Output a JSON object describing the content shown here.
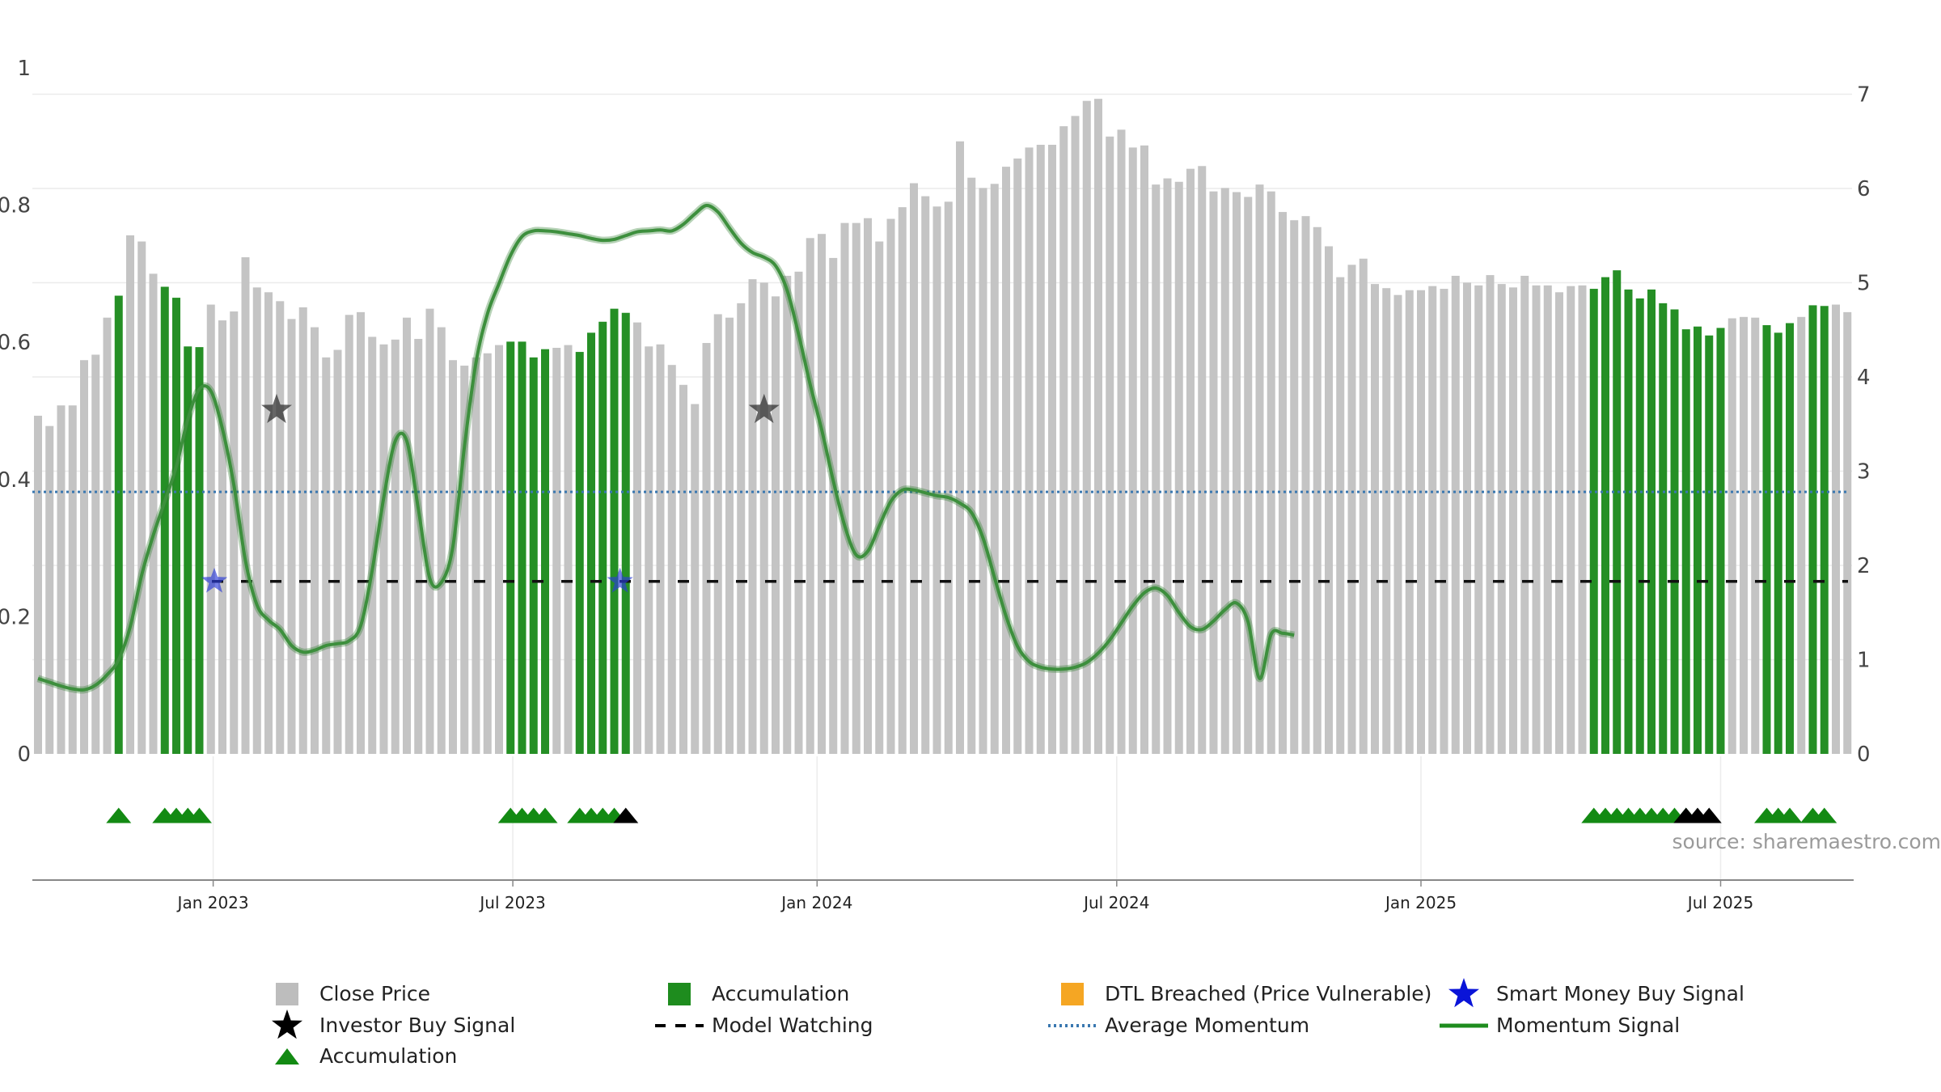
{
  "chart_data": {
    "type": "bar",
    "title": "",
    "source": "source: sharemaestro.com",
    "left_axis": {
      "ticks": [
        0,
        0.2,
        0.4,
        0.6,
        0.8,
        1
      ],
      "tick_labels": [
        "0",
        "0.2",
        "0.4",
        "0.6",
        "0.8",
        "1"
      ],
      "ylim": [
        0,
        1
      ]
    },
    "right_axis": {
      "ticks": [
        0,
        1,
        2,
        3,
        4,
        5,
        6,
        7
      ],
      "tick_labels": [
        "0",
        "1",
        "2",
        "3",
        "4",
        "5",
        "6",
        "7"
      ],
      "ylim": [
        0,
        7
      ]
    },
    "x_ticks": [
      {
        "label": "Jan 2023",
        "index": 15.2
      },
      {
        "label": "Jul 2023",
        "index": 41.2
      },
      {
        "label": "Jan 2024",
        "index": 67.6
      },
      {
        "label": "Jul 2024",
        "index": 93.6
      },
      {
        "label": "Jan 2025",
        "index": 120.0
      },
      {
        "label": "Jul 2025",
        "index": 146.0
      }
    ],
    "close_price": [
      0.493,
      0.478,
      0.508,
      0.508,
      0.574,
      0.582,
      0.636,
      0.668,
      0.756,
      0.747,
      0.7,
      0.681,
      0.665,
      0.594,
      0.593,
      0.655,
      0.632,
      0.645,
      0.724,
      0.68,
      0.673,
      0.66,
      0.634,
      0.651,
      0.622,
      0.578,
      0.589,
      0.64,
      0.644,
      0.608,
      0.597,
      0.604,
      0.636,
      0.605,
      0.649,
      0.622,
      0.574,
      0.566,
      0.578,
      0.584,
      0.596,
      0.601,
      0.601,
      0.578,
      0.59,
      0.592,
      0.596,
      0.586,
      0.614,
      0.63,
      0.649,
      0.643,
      0.629,
      0.594,
      0.597,
      0.567,
      0.538,
      0.51,
      0.599,
      0.641,
      0.636,
      0.657,
      0.692,
      0.687,
      0.667,
      0.697,
      0.703,
      0.752,
      0.758,
      0.723,
      0.774,
      0.774,
      0.781,
      0.747,
      0.78,
      0.797,
      0.832,
      0.813,
      0.798,
      0.805,
      0.893,
      0.84,
      0.825,
      0.831,
      0.856,
      0.868,
      0.884,
      0.888,
      0.888,
      0.915,
      0.93,
      0.952,
      0.955,
      0.9,
      0.91,
      0.884,
      0.887,
      0.83,
      0.839,
      0.834,
      0.853,
      0.857,
      0.82,
      0.825,
      0.819,
      0.812,
      0.83,
      0.82,
      0.79,
      0.778,
      0.784,
      0.768,
      0.74,
      0.695,
      0.713,
      0.722,
      0.685,
      0.679,
      0.669,
      0.676,
      0.676,
      0.682,
      0.678,
      0.697,
      0.687,
      0.683,
      0.698,
      0.685,
      0.68,
      0.697,
      0.683,
      0.683,
      0.673,
      0.682,
      0.683,
      0.678,
      0.695,
      0.705,
      0.677,
      0.664,
      0.677,
      0.657,
      0.648,
      0.619,
      0.623,
      0.61,
      0.621,
      0.635,
      0.637,
      0.636,
      0.625,
      0.614,
      0.628,
      0.637,
      0.654,
      0.653,
      0.655,
      0.644
    ],
    "accumulation_bar_indices": [
      7,
      11,
      12,
      13,
      14,
      41,
      42,
      43,
      44,
      47,
      48,
      49,
      50,
      51,
      135,
      136,
      137,
      138,
      139,
      140,
      141,
      142,
      143,
      144,
      145,
      146,
      150,
      151,
      152,
      154,
      155
    ],
    "momentum_signal": [
      0.8,
      0.76,
      0.72,
      0.69,
      0.68,
      0.73,
      0.84,
      1.0,
      1.35,
      1.9,
      2.32,
      2.68,
      3.05,
      3.55,
      3.87,
      3.85,
      3.45,
      2.85,
      2.05,
      1.58,
      1.42,
      1.32,
      1.15,
      1.08,
      1.1,
      1.15,
      1.17,
      1.2,
      1.36,
      1.95,
      2.72,
      3.32,
      3.32,
      2.6,
      1.86,
      1.82,
      2.2,
      3.26,
      4.15,
      4.67,
      4.99,
      5.29,
      5.49,
      5.55,
      5.55,
      5.54,
      5.52,
      5.5,
      5.47,
      5.45,
      5.46,
      5.5,
      5.54,
      5.55,
      5.56,
      5.55,
      5.62,
      5.73,
      5.82,
      5.75,
      5.58,
      5.42,
      5.32,
      5.27,
      5.18,
      4.92,
      4.45,
      3.92,
      3.44,
      2.9,
      2.42,
      2.11,
      2.15,
      2.42,
      2.68,
      2.8,
      2.8,
      2.77,
      2.74,
      2.72,
      2.66,
      2.56,
      2.29,
      1.87,
      1.46,
      1.14,
      0.98,
      0.92,
      0.9,
      0.9,
      0.92,
      0.97,
      1.07,
      1.21,
      1.39,
      1.57,
      1.71,
      1.76,
      1.68,
      1.5,
      1.35,
      1.32,
      1.41,
      1.53,
      1.6,
      1.4,
      0.8,
      1.27,
      1.28,
      1.26
    ],
    "average_momentum": 2.78,
    "model_watching_level": 1.83,
    "investor_buy_signals": [
      {
        "index": 20.7,
        "value": 3.65
      },
      {
        "index": 63.0,
        "value": 3.65
      }
    ],
    "smart_money_buy_signals": [
      {
        "index": 15.3,
        "value": 1.83
      },
      {
        "index": 50.5,
        "value": 1.83
      }
    ],
    "accumulation_markers": [
      7,
      11,
      12,
      13,
      14,
      41,
      42,
      43,
      44,
      47,
      48,
      49,
      50,
      135,
      136,
      137,
      138,
      139,
      140,
      141,
      142,
      143,
      150,
      151,
      152,
      154,
      155
    ],
    "black_markers": [
      51,
      143,
      144,
      145
    ],
    "legend": [
      {
        "label": "Close Price",
        "symbol": "square",
        "color": "#bdbdbd"
      },
      {
        "label": "Accumulation",
        "symbol": "square",
        "color": "#1e8c1e"
      },
      {
        "label": "DTL Breached (Price Vulnerable)",
        "symbol": "square",
        "color": "#f5a623"
      },
      {
        "label": "Smart Money Buy Signal",
        "symbol": "star",
        "color": "#0a14d8"
      },
      {
        "label": "Investor Buy Signal",
        "symbol": "star",
        "color": "#000000"
      },
      {
        "label": "Model Watching",
        "symbol": "dash",
        "color": "#000000"
      },
      {
        "label": "Average Momentum",
        "symbol": "dotted",
        "color": "#3a78b0"
      },
      {
        "label": "Momentum Signal",
        "symbol": "line",
        "color": "#1e8c1e"
      },
      {
        "label": "Accumulation",
        "symbol": "triangle",
        "color": "#138a13"
      }
    ],
    "colors": {
      "close": "#c4c4c4",
      "accumulation": "#258f25",
      "momentum": "#3d8f3d",
      "average": "#3a78b0",
      "watching": "#111111",
      "smart_money": "#2b3cd8",
      "investor": "#333333",
      "triangle_green": "#138a13",
      "triangle_black": "#000000"
    }
  }
}
